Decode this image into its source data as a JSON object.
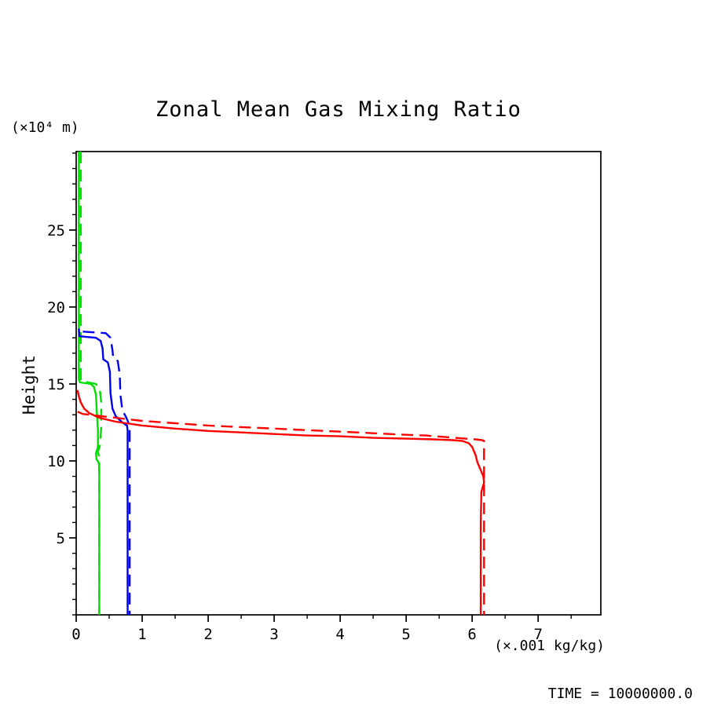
{
  "title": "Zonal Mean Gas Mixing Ratio",
  "labels": {
    "y_unit": "(×10⁴ m)",
    "y_axis": "Height",
    "x_unit": "(×.001 kg/kg)",
    "time": "TIME = 10000000.0"
  },
  "colors": {
    "axis": "#000000",
    "red": "#ff0000",
    "blue": "#0000ee",
    "green": "#00dd00"
  },
  "chart_data": {
    "type": "line",
    "title": "Zonal Mean Gas Mixing Ratio",
    "xlabel": "(×.001 kg/kg)",
    "ylabel": "Height (×10⁴ m)",
    "xlim": [
      0,
      7.95
    ],
    "ylim": [
      0,
      30.1
    ],
    "x_ticks": [
      0,
      1,
      2,
      3,
      4,
      5,
      6,
      7
    ],
    "y_ticks": [
      5,
      10,
      15,
      20,
      25
    ],
    "x_minor_step": 0.5,
    "y_minor_step": 1,
    "grid": false,
    "legend": "none",
    "annotation": "TIME = 10000000.0",
    "series": [
      {
        "name": "green-solid",
        "color": "#00dd00",
        "dash": "solid",
        "points": [
          [
            0.04,
            30.1
          ],
          [
            0.04,
            15.3
          ],
          [
            0.06,
            15.1
          ],
          [
            0.22,
            15.0
          ],
          [
            0.27,
            14.8
          ],
          [
            0.3,
            14.3
          ],
          [
            0.31,
            13.4
          ],
          [
            0.33,
            12.0
          ],
          [
            0.33,
            10.9
          ],
          [
            0.3,
            10.5
          ],
          [
            0.31,
            10.1
          ],
          [
            0.34,
            9.9
          ],
          [
            0.35,
            9.6
          ],
          [
            0.35,
            0
          ]
        ]
      },
      {
        "name": "green-dashed",
        "color": "#00dd00",
        "dash": "dashed",
        "points": [
          [
            0.07,
            30.1
          ],
          [
            0.07,
            15.2
          ],
          [
            0.3,
            15.0
          ],
          [
            0.36,
            14.6
          ],
          [
            0.38,
            13.8
          ],
          [
            0.38,
            12.2
          ],
          [
            0.36,
            11.0
          ],
          [
            0.33,
            10.6
          ],
          [
            0.35,
            10.2
          ],
          [
            0.35,
            0
          ]
        ]
      },
      {
        "name": "blue-solid",
        "color": "#0000ee",
        "dash": "solid",
        "points": [
          [
            0.04,
            18.6
          ],
          [
            0.05,
            18.1
          ],
          [
            0.3,
            18.0
          ],
          [
            0.37,
            17.8
          ],
          [
            0.4,
            17.3
          ],
          [
            0.41,
            16.6
          ],
          [
            0.48,
            16.4
          ],
          [
            0.51,
            15.8
          ],
          [
            0.52,
            14.4
          ],
          [
            0.55,
            13.4
          ],
          [
            0.6,
            12.9
          ],
          [
            0.7,
            12.5
          ],
          [
            0.77,
            12.3
          ],
          [
            0.78,
            12.0
          ],
          [
            0.78,
            0
          ]
        ]
      },
      {
        "name": "blue-dashed",
        "color": "#0000ee",
        "dash": "dashed",
        "points": [
          [
            0.1,
            18.4
          ],
          [
            0.45,
            18.3
          ],
          [
            0.52,
            18.0
          ],
          [
            0.55,
            17.2
          ],
          [
            0.56,
            16.7
          ],
          [
            0.63,
            16.5
          ],
          [
            0.66,
            15.6
          ],
          [
            0.67,
            14.3
          ],
          [
            0.7,
            13.3
          ],
          [
            0.76,
            12.8
          ],
          [
            0.8,
            12.4
          ],
          [
            0.81,
            12.0
          ],
          [
            0.81,
            0
          ]
        ]
      },
      {
        "name": "red-solid",
        "color": "#ff0000",
        "dash": "solid",
        "points": [
          [
            0.02,
            14.6
          ],
          [
            0.04,
            14.2
          ],
          [
            0.07,
            13.8
          ],
          [
            0.12,
            13.4
          ],
          [
            0.2,
            13.1
          ],
          [
            0.35,
            12.8
          ],
          [
            0.6,
            12.55
          ],
          [
            1.0,
            12.3
          ],
          [
            1.5,
            12.1
          ],
          [
            2.0,
            11.95
          ],
          [
            2.5,
            11.85
          ],
          [
            3.0,
            11.75
          ],
          [
            3.5,
            11.65
          ],
          [
            4.0,
            11.6
          ],
          [
            4.5,
            11.5
          ],
          [
            5.0,
            11.45
          ],
          [
            5.4,
            11.4
          ],
          [
            5.7,
            11.35
          ],
          [
            5.85,
            11.3
          ],
          [
            5.95,
            11.15
          ],
          [
            6.0,
            10.9
          ],
          [
            6.05,
            10.4
          ],
          [
            6.08,
            9.9
          ],
          [
            6.13,
            9.4
          ],
          [
            6.17,
            9.0
          ],
          [
            6.18,
            8.6
          ],
          [
            6.14,
            8.0
          ],
          [
            6.13,
            6.0
          ],
          [
            6.13,
            0
          ]
        ]
      },
      {
        "name": "red-dashed",
        "color": "#ff0000",
        "dash": "dashed",
        "points": [
          [
            0.02,
            13.2
          ],
          [
            0.1,
            13.05
          ],
          [
            0.3,
            12.95
          ],
          [
            0.6,
            12.8
          ],
          [
            1.0,
            12.6
          ],
          [
            1.5,
            12.45
          ],
          [
            2.0,
            12.3
          ],
          [
            2.5,
            12.2
          ],
          [
            3.0,
            12.1
          ],
          [
            3.5,
            12.0
          ],
          [
            4.0,
            11.9
          ],
          [
            4.5,
            11.8
          ],
          [
            5.0,
            11.7
          ],
          [
            5.3,
            11.65
          ],
          [
            5.6,
            11.55
          ],
          [
            5.9,
            11.45
          ],
          [
            6.05,
            11.4
          ],
          [
            6.15,
            11.35
          ],
          [
            6.18,
            11.3
          ],
          [
            6.18,
            0
          ]
        ]
      }
    ]
  }
}
